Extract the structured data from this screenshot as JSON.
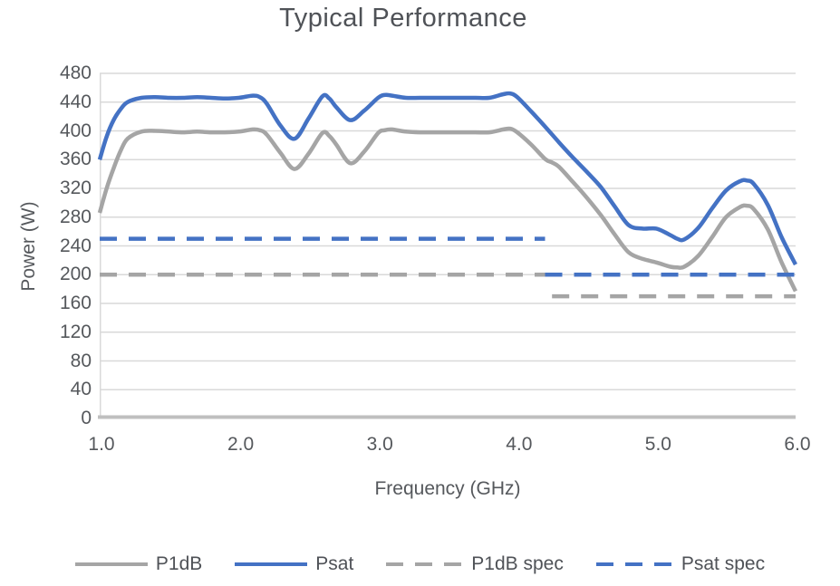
{
  "title": "Typical Performance",
  "colors": {
    "series_blue": "#4472C4",
    "series_gray": "#A5A5A5",
    "gridline": "#D9D9D9",
    "axis_line": "#BFBFBF",
    "text": "#55585C",
    "background": "#FFFFFF"
  },
  "chart_data": {
    "type": "line",
    "title": "Typical Performance",
    "xlabel": "Frequency (GHz)",
    "ylabel": "Power (W)",
    "xlim": [
      1.0,
      6.0
    ],
    "ylim": [
      0,
      480
    ],
    "x_ticks": [
      "1.0",
      "2.0",
      "3.0",
      "4.0",
      "5.0",
      "6.0"
    ],
    "y_ticks": [
      "0",
      "40",
      "80",
      "120",
      "160",
      "200",
      "240",
      "280",
      "320",
      "360",
      "400",
      "440",
      "480"
    ],
    "grid": "horizontal-only",
    "legend_position": "bottom",
    "series": [
      {
        "name": "P1dB",
        "color": "#A5A5A5",
        "style": "solid",
        "segments": [
          [
            [
              1.0,
              286
            ],
            [
              1.05,
              320
            ],
            [
              1.1,
              348
            ],
            [
              1.15,
              372
            ],
            [
              1.2,
              389
            ],
            [
              1.3,
              399
            ],
            [
              1.4,
              400
            ],
            [
              1.5,
              399
            ],
            [
              1.6,
              398
            ],
            [
              1.7,
              399
            ],
            [
              1.8,
              398
            ],
            [
              1.9,
              398
            ],
            [
              2.0,
              399
            ],
            [
              2.1,
              402
            ],
            [
              2.15,
              401
            ],
            [
              2.2,
              395
            ],
            [
              2.3,
              369
            ],
            [
              2.4,
              347
            ],
            [
              2.5,
              368
            ],
            [
              2.6,
              397
            ],
            [
              2.65,
              393
            ],
            [
              2.7,
              381
            ],
            [
              2.8,
              355
            ],
            [
              2.9,
              371
            ],
            [
              3.0,
              397
            ],
            [
              3.05,
              401
            ],
            [
              3.1,
              402
            ],
            [
              3.2,
              399
            ],
            [
              3.3,
              398
            ],
            [
              3.4,
              398
            ],
            [
              3.5,
              398
            ],
            [
              3.6,
              398
            ],
            [
              3.7,
              398
            ],
            [
              3.8,
              398
            ],
            [
              3.9,
              402
            ],
            [
              3.95,
              403
            ],
            [
              4.0,
              398
            ],
            [
              4.1,
              381
            ],
            [
              4.2,
              361
            ],
            [
              4.25,
              356
            ],
            [
              4.3,
              350
            ],
            [
              4.4,
              329
            ],
            [
              4.5,
              307
            ],
            [
              4.6,
              283
            ],
            [
              4.7,
              256
            ],
            [
              4.8,
              231
            ],
            [
              4.9,
              222
            ],
            [
              5.0,
              217
            ],
            [
              5.1,
              211
            ],
            [
              5.15,
              210
            ],
            [
              5.2,
              211
            ],
            [
              5.3,
              226
            ],
            [
              5.4,
              252
            ],
            [
              5.5,
              280
            ],
            [
              5.6,
              294
            ],
            [
              5.65,
              296
            ],
            [
              5.7,
              291
            ],
            [
              5.8,
              263
            ],
            [
              5.9,
              217
            ],
            [
              6.0,
              177
            ]
          ]
        ]
      },
      {
        "name": "Psat",
        "color": "#4472C4",
        "style": "solid",
        "segments": [
          [
            [
              1.0,
              360
            ],
            [
              1.05,
              392
            ],
            [
              1.1,
              415
            ],
            [
              1.15,
              430
            ],
            [
              1.2,
              440
            ],
            [
              1.3,
              446
            ],
            [
              1.4,
              447
            ],
            [
              1.5,
              446
            ],
            [
              1.6,
              446
            ],
            [
              1.7,
              447
            ],
            [
              1.8,
              446
            ],
            [
              1.9,
              445
            ],
            [
              2.0,
              446
            ],
            [
              2.1,
              449
            ],
            [
              2.15,
              447
            ],
            [
              2.2,
              438
            ],
            [
              2.3,
              407
            ],
            [
              2.4,
              389
            ],
            [
              2.5,
              417
            ],
            [
              2.6,
              448
            ],
            [
              2.65,
              445
            ],
            [
              2.7,
              433
            ],
            [
              2.8,
              415
            ],
            [
              2.9,
              428
            ],
            [
              3.0,
              446
            ],
            [
              3.05,
              450
            ],
            [
              3.1,
              449
            ],
            [
              3.2,
              446
            ],
            [
              3.3,
              446
            ],
            [
              3.4,
              446
            ],
            [
              3.5,
              446
            ],
            [
              3.6,
              446
            ],
            [
              3.7,
              446
            ],
            [
              3.8,
              446
            ],
            [
              3.9,
              451
            ],
            [
              3.95,
              452
            ],
            [
              4.0,
              447
            ],
            [
              4.1,
              427
            ],
            [
              4.2,
              406
            ],
            [
              4.3,
              384
            ],
            [
              4.4,
              363
            ],
            [
              4.5,
              343
            ],
            [
              4.6,
              322
            ],
            [
              4.7,
              295
            ],
            [
              4.8,
              269
            ],
            [
              4.9,
              264
            ],
            [
              5.0,
              264
            ],
            [
              5.1,
              255
            ],
            [
              5.15,
              250
            ],
            [
              5.2,
              249
            ],
            [
              5.3,
              265
            ],
            [
              5.4,
              292
            ],
            [
              5.5,
              317
            ],
            [
              5.6,
              330
            ],
            [
              5.65,
              331
            ],
            [
              5.7,
              326
            ],
            [
              5.8,
              297
            ],
            [
              5.9,
              252
            ],
            [
              6.0,
              214
            ]
          ]
        ]
      },
      {
        "name": "P1dB spec",
        "color": "#A5A5A5",
        "style": "dashed",
        "segments": [
          [
            [
              1.0,
              200
            ],
            [
              4.2,
              200
            ]
          ],
          [
            [
              4.25,
              170
            ],
            [
              6.0,
              170
            ]
          ]
        ]
      },
      {
        "name": "Psat spec",
        "color": "#4472C4",
        "style": "dashed",
        "segments": [
          [
            [
              1.0,
              250
            ],
            [
              4.2,
              250
            ]
          ],
          [
            [
              4.2,
              200
            ],
            [
              6.0,
              200
            ]
          ]
        ]
      }
    ]
  }
}
